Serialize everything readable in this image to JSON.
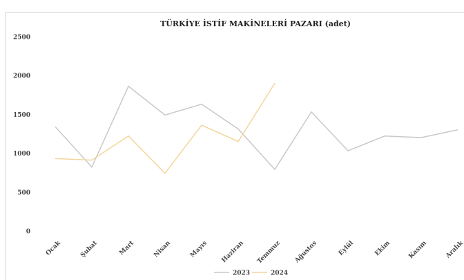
{
  "chart_data": {
    "type": "line",
    "title": "TÜRKİYE İSTİF MAKİNELERİ PAZARI (adet)",
    "categories": [
      "Ocak",
      "Şubat",
      "Mart",
      "Nisan",
      "Mayıs",
      "Haziran",
      "Temmuz",
      "Ağustos",
      "Eylül",
      "Ekim",
      "Kasım",
      "Aralık"
    ],
    "series": [
      {
        "name": "2023",
        "color": "#c8c8c8",
        "values": [
          1350,
          830,
          1870,
          1500,
          1640,
          1320,
          800,
          1540,
          1040,
          1230,
          1210,
          1310
        ]
      },
      {
        "name": "2024",
        "color": "#f3d69c",
        "values": [
          940,
          920,
          1230,
          750,
          1370,
          1160,
          1910,
          null,
          null,
          null,
          null,
          null
        ]
      }
    ],
    "ylim": [
      0,
      2500
    ],
    "yticks": [
      0,
      500,
      1000,
      1500,
      2000,
      2500
    ],
    "grid": false,
    "legend": "bottom"
  }
}
